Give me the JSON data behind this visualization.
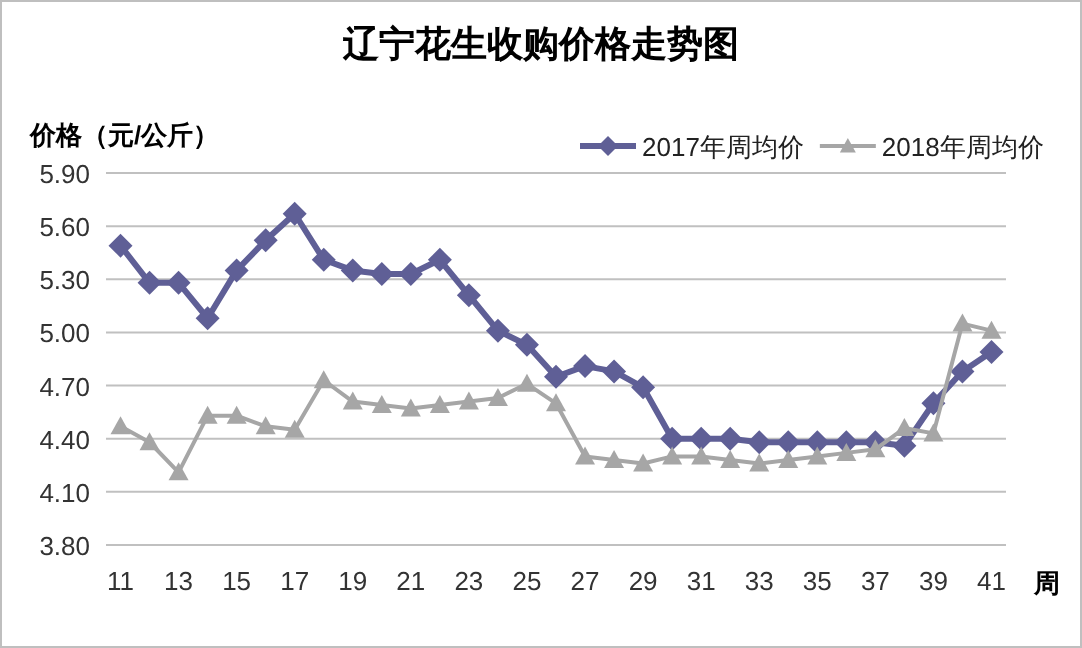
{
  "chart_data": {
    "type": "line",
    "title": "辽宁花生收购价格走势图",
    "ylabel": "价格（元/公斤）",
    "xlabel": "周",
    "categories": [
      "11",
      null,
      "13",
      null,
      "15",
      null,
      "17",
      null,
      "19",
      null,
      "21",
      null,
      "23",
      null,
      "25",
      null,
      "27",
      null,
      "29",
      null,
      "31",
      null,
      "33",
      null,
      "35",
      null,
      "37",
      null,
      "39",
      null,
      "41"
    ],
    "series": [
      {
        "name": "2017年周均价",
        "color": "#5f5f96",
        "marker": "diamond",
        "values": [
          5.49,
          5.28,
          5.28,
          5.08,
          5.35,
          5.52,
          5.67,
          5.41,
          5.35,
          5.33,
          5.33,
          5.41,
          5.21,
          5.01,
          4.93,
          4.75,
          4.81,
          4.78,
          4.69,
          4.4,
          4.4,
          4.4,
          4.38,
          4.38,
          4.38,
          4.38,
          4.38,
          4.36,
          4.6,
          4.78,
          4.89
        ]
      },
      {
        "name": "2018年周均价",
        "color": "#a6a6a6",
        "marker": "triangle",
        "values": [
          4.47,
          4.38,
          4.21,
          4.53,
          4.53,
          4.47,
          4.45,
          4.73,
          4.61,
          4.59,
          4.57,
          4.59,
          4.61,
          4.63,
          4.71,
          4.6,
          4.3,
          4.28,
          4.26,
          4.3,
          4.3,
          4.28,
          4.26,
          4.28,
          4.3,
          4.32,
          4.34,
          4.46,
          4.43,
          5.05,
          5.01
        ]
      }
    ],
    "ylim": [
      3.8,
      5.9
    ],
    "yticks": [
      {
        "value": 3.8,
        "label": "3.80"
      },
      {
        "value": 4.1,
        "label": "4.10"
      },
      {
        "value": 4.4,
        "label": "4.40"
      },
      {
        "value": 4.7,
        "label": "4.70"
      },
      {
        "value": 5.0,
        "label": "5.00"
      },
      {
        "value": 5.3,
        "label": "5.30"
      },
      {
        "value": 5.6,
        "label": "5.60"
      },
      {
        "value": 5.9,
        "label": "5.90"
      }
    ],
    "grid": "y",
    "legend": "top right"
  }
}
